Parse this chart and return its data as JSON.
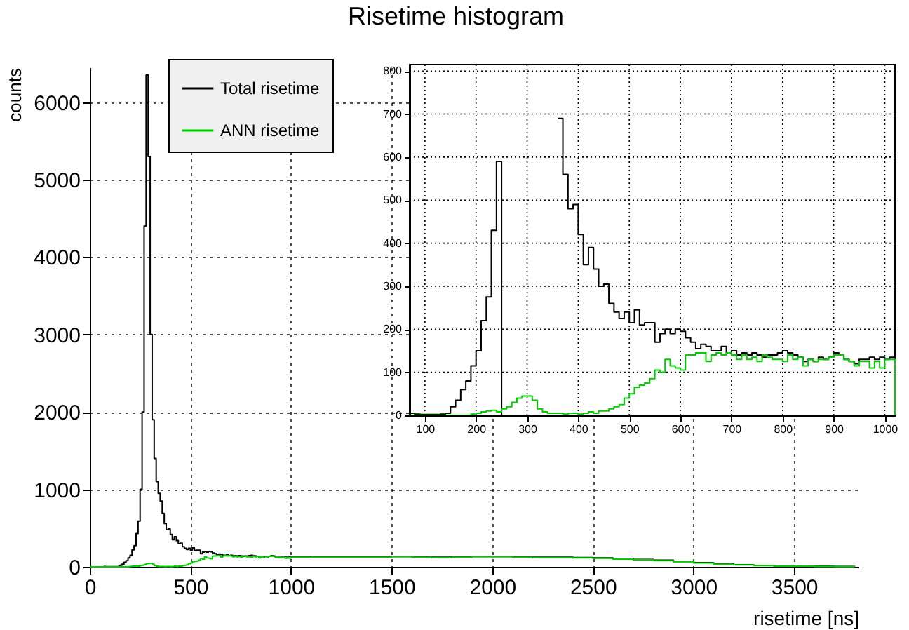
{
  "chart_data": [
    {
      "type": "histogram",
      "title": "Risetime histogram",
      "xlabel": "risetime [ns]",
      "ylabel": "counts",
      "bins": [
        0,
        10,
        20,
        30,
        40,
        50,
        60,
        70,
        80,
        90,
        100,
        110,
        120,
        130,
        140,
        150,
        160,
        170,
        180,
        190,
        200,
        210,
        220,
        230,
        240,
        250,
        260,
        270,
        280,
        290,
        300,
        310,
        320,
        330,
        340,
        350,
        360,
        370,
        380,
        390,
        400,
        410,
        420,
        430,
        440,
        450,
        460,
        470,
        480,
        490,
        500,
        510,
        520,
        530,
        540,
        550,
        560,
        570,
        580,
        590,
        600,
        610,
        620,
        630,
        640,
        650,
        660,
        670,
        680,
        690,
        700,
        710,
        720,
        730,
        740,
        750,
        760,
        770,
        780,
        790,
        800,
        810,
        820,
        830,
        840,
        850,
        860,
        870,
        880,
        890,
        900,
        910,
        920,
        930,
        940,
        950,
        960,
        970,
        980,
        990,
        1000,
        1100,
        1200,
        1300,
        1400,
        1500,
        1600,
        1700,
        1800,
        1900,
        2000,
        2100,
        2200,
        2300,
        2400,
        2500,
        2600,
        2700,
        2800,
        2900,
        3000,
        3100,
        3200,
        3300,
        3400,
        3500,
        3600,
        3700,
        3800
      ],
      "series": [
        {
          "name": "Total risetime",
          "color": "#000000",
          "values": [
            0,
            0,
            0,
            0,
            0,
            0,
            0,
            5,
            3,
            2,
            2,
            2,
            2,
            3,
            5,
            20,
            35,
            60,
            80,
            115,
            150,
            220,
            275,
            430,
            590,
            1000,
            2000,
            4400,
            6350,
            5300,
            3000,
            1900,
            1400,
            1100,
            950,
            850,
            690,
            560,
            480,
            490,
            420,
            350,
            390,
            340,
            300,
            305,
            260,
            240,
            225,
            240,
            215,
            245,
            210,
            215,
            215,
            170,
            190,
            200,
            190,
            200,
            195,
            180,
            170,
            155,
            165,
            160,
            150,
            150,
            160,
            145,
            150,
            140,
            145,
            140,
            145,
            140,
            135,
            140,
            140,
            145,
            150,
            145,
            140,
            135,
            125,
            130,
            125,
            135,
            130,
            135,
            145,
            140,
            130,
            125,
            120,
            130,
            130,
            135,
            130,
            135,
            135,
            130,
            130,
            130,
            130,
            135,
            130,
            125,
            130,
            135,
            135,
            130,
            125,
            125,
            120,
            115,
            105,
            95,
            85,
            70,
            55,
            40,
            28,
            18,
            12,
            9,
            6,
            4
          ]
        },
        {
          "name": "ANN risetime",
          "color": "#00cc00",
          "values": [
            0,
            0,
            0,
            0,
            0,
            0,
            0,
            0,
            0,
            0,
            0,
            0,
            0,
            0,
            0,
            0,
            0,
            0,
            0,
            3,
            5,
            8,
            10,
            12,
            8,
            15,
            20,
            30,
            40,
            45,
            45,
            35,
            15,
            8,
            5,
            5,
            5,
            3,
            5,
            5,
            3,
            5,
            8,
            5,
            10,
            10,
            15,
            20,
            25,
            40,
            50,
            65,
            70,
            75,
            85,
            105,
            100,
            130,
            115,
            110,
            105,
            140,
            140,
            145,
            145,
            125,
            140,
            145,
            140,
            145,
            140,
            130,
            140,
            130,
            135,
            125,
            140,
            135,
            130,
            130,
            125,
            140,
            130,
            135,
            115,
            130,
            125,
            130,
            130,
            135,
            140,
            140,
            130,
            125,
            115,
            125,
            125,
            110,
            125,
            110,
            125,
            125,
            125,
            125,
            125,
            130,
            125,
            120,
            125,
            130,
            130,
            125,
            120,
            120,
            115,
            110,
            100,
            90,
            80,
            65,
            50,
            35,
            25,
            15,
            10,
            8,
            5,
            3
          ]
        }
      ],
      "xlim": [
        0,
        3820
      ],
      "ylim": [
        0,
        6450
      ],
      "xticks": [
        0,
        500,
        1000,
        1500,
        2000,
        2500,
        3000,
        3500
      ],
      "yticks": [
        0,
        1000,
        2000,
        3000,
        4000,
        5000,
        6000
      ],
      "grid": true,
      "legend": "top left"
    },
    {
      "type": "histogram",
      "bins": [
        70,
        80,
        90,
        100,
        110,
        120,
        130,
        140,
        150,
        160,
        170,
        180,
        190,
        200,
        210,
        220,
        230,
        240,
        250,
        260,
        270,
        280,
        290,
        300,
        310,
        320,
        330,
        340,
        350,
        360,
        370,
        380,
        390,
        400,
        410,
        420,
        430,
        440,
        450,
        460,
        470,
        480,
        490,
        500,
        510,
        520,
        530,
        540,
        550,
        560,
        570,
        580,
        590,
        600,
        610,
        620,
        630,
        640,
        650,
        660,
        670,
        680,
        690,
        700,
        710,
        720,
        730,
        740,
        750,
        760,
        770,
        780,
        790,
        800,
        810,
        820,
        830,
        840,
        850,
        860,
        870,
        880,
        890,
        900,
        910,
        920,
        930,
        940,
        950,
        960,
        970,
        980,
        990,
        1000,
        1010,
        1020
      ],
      "series": [
        {
          "color": "#000000",
          "bins": [
            70,
            80,
            90,
            100,
            110,
            120,
            130,
            140,
            150,
            160,
            170,
            180,
            190,
            200,
            210,
            220,
            230,
            240,
            250
          ],
          "values": [
            5,
            3,
            2,
            2,
            2,
            2,
            3,
            5,
            20,
            35,
            60,
            80,
            115,
            150,
            220,
            275,
            430,
            590
          ]
        },
        {
          "color": "#000000",
          "bins": [
            360,
            370,
            380,
            390,
            400,
            410,
            420,
            430,
            440,
            450,
            460,
            470,
            480,
            490,
            500,
            510,
            520,
            530,
            540,
            550,
            560,
            570,
            580,
            590,
            600,
            610,
            620,
            630,
            640,
            650,
            660,
            670,
            680,
            690,
            700,
            710,
            720,
            730,
            740,
            750,
            760,
            770,
            780,
            790,
            800,
            810,
            820,
            830,
            840,
            850,
            860,
            870,
            880,
            890,
            900,
            910,
            920,
            930,
            940,
            950,
            960,
            970,
            980,
            990,
            1000,
            1010,
            1020
          ],
          "values": [
            690,
            560,
            480,
            490,
            420,
            350,
            390,
            340,
            300,
            305,
            260,
            240,
            225,
            240,
            215,
            245,
            210,
            215,
            215,
            170,
            190,
            200,
            190,
            200,
            195,
            180,
            170,
            155,
            165,
            160,
            150,
            150,
            160,
            145,
            150,
            140,
            145,
            140,
            145,
            140,
            135,
            140,
            140,
            145,
            150,
            145,
            140,
            135,
            125,
            130,
            125,
            135,
            130,
            135,
            145,
            140,
            130,
            125,
            120,
            130,
            130,
            135,
            130,
            135,
            130,
            135
          ]
        },
        {
          "color": "#00cc00",
          "values": [
            0,
            0,
            0,
            0,
            0,
            0,
            0,
            0,
            0,
            0,
            0,
            0,
            3,
            5,
            8,
            10,
            12,
            8,
            15,
            20,
            30,
            40,
            45,
            45,
            35,
            15,
            8,
            5,
            5,
            5,
            3,
            5,
            5,
            3,
            5,
            8,
            5,
            10,
            10,
            15,
            20,
            25,
            40,
            50,
            65,
            70,
            75,
            85,
            105,
            100,
            130,
            115,
            110,
            105,
            140,
            140,
            145,
            145,
            125,
            140,
            145,
            140,
            145,
            140,
            130,
            140,
            130,
            135,
            125,
            140,
            135,
            130,
            130,
            125,
            140,
            130,
            135,
            115,
            130,
            125,
            130,
            130,
            135,
            140,
            140,
            130,
            125,
            115,
            125,
            125,
            110,
            125,
            110,
            130,
            130
          ]
        }
      ],
      "xlim": [
        70,
        1020
      ],
      "ylim": [
        0,
        815
      ],
      "xticks": [
        100,
        200,
        300,
        400,
        500,
        600,
        700,
        800,
        900,
        1000
      ],
      "yticks": [
        0,
        100,
        200,
        300,
        400,
        500,
        600,
        700,
        800
      ],
      "grid": true
    }
  ]
}
